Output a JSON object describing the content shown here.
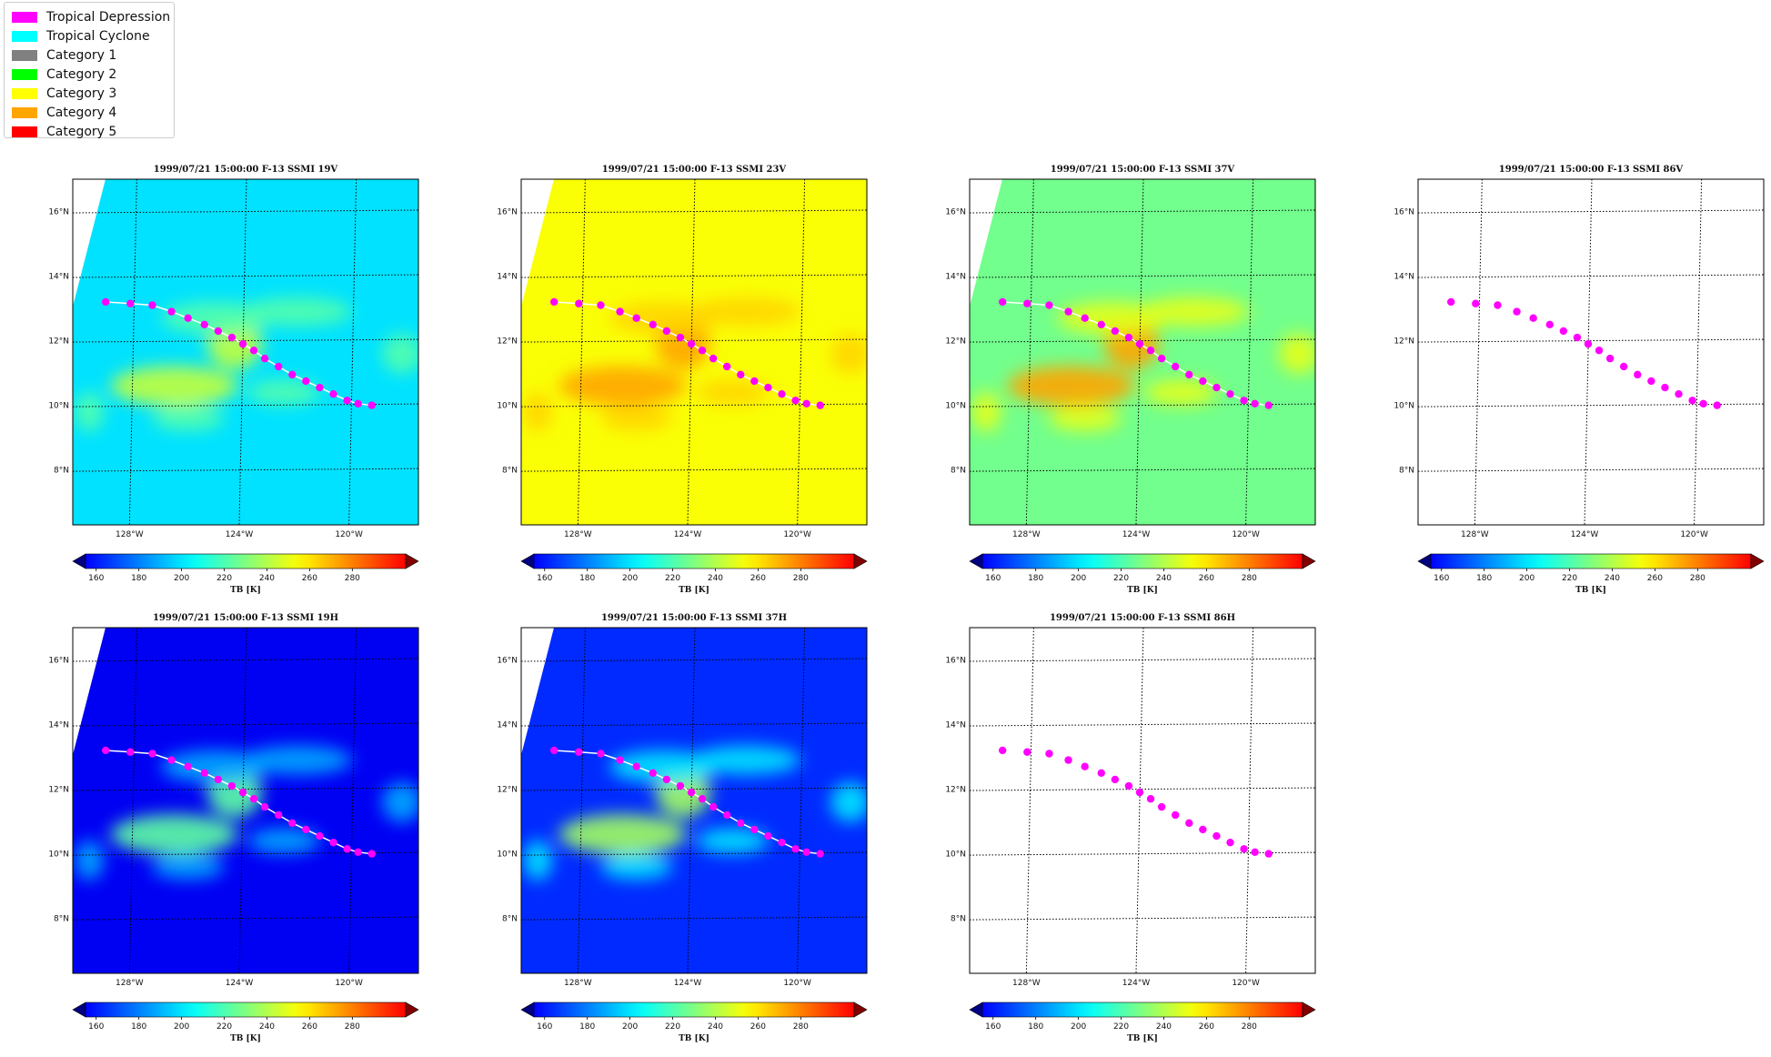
{
  "legend": {
    "items": [
      {
        "label": "Tropical Depression",
        "color": "#ff00ff"
      },
      {
        "label": "Tropical Cyclone",
        "color": "#00ffff"
      },
      {
        "label": "Category 1",
        "color": "#808080"
      },
      {
        "label": "Category 2",
        "color": "#00ff00"
      },
      {
        "label": "Category 3",
        "color": "#ffff00"
      },
      {
        "label": "Category 4",
        "color": "#ffa500"
      },
      {
        "label": "Category 5",
        "color": "#ff0000"
      }
    ]
  },
  "map": {
    "lon_labels": [
      "128°W",
      "124°W",
      "120°W"
    ],
    "lat_labels": [
      "16°N",
      "14°N",
      "12°N",
      "10°N",
      "8°N"
    ],
    "lon_values": [
      -128,
      -124,
      -120
    ],
    "lat_values": [
      16,
      14,
      12,
      10,
      8
    ],
    "track_color": "#ff00ff",
    "track": [
      [
        -129.0,
        13.2
      ],
      [
        -128.1,
        13.15
      ],
      [
        -127.3,
        13.1
      ],
      [
        -126.6,
        12.9
      ],
      [
        -126.0,
        12.7
      ],
      [
        -125.4,
        12.5
      ],
      [
        -124.9,
        12.3
      ],
      [
        -124.4,
        12.1
      ],
      [
        -124.0,
        11.9
      ],
      [
        -123.6,
        11.7
      ],
      [
        -123.2,
        11.45
      ],
      [
        -122.7,
        11.2
      ],
      [
        -122.2,
        10.95
      ],
      [
        -121.7,
        10.75
      ],
      [
        -121.2,
        10.55
      ],
      [
        -120.7,
        10.35
      ],
      [
        -120.2,
        10.15
      ],
      [
        -119.8,
        10.05
      ],
      [
        -119.3,
        10.0
      ]
    ]
  },
  "colorbar": {
    "ticks": [
      "160",
      "180",
      "200",
      "220",
      "240",
      "260",
      "280"
    ],
    "tick_values": [
      160,
      180,
      200,
      220,
      240,
      260,
      280
    ],
    "range": [
      155,
      305
    ],
    "label": "TB [K]"
  },
  "panels": [
    {
      "title": "1999/07/21 15:00:00  F-13 SSMI 19V",
      "base_tb": 207,
      "feature_tb": 240,
      "has_data": true,
      "show_line": true
    },
    {
      "title": "1999/07/21 15:00:00  F-13 SSMI 23V",
      "base_tb": 248,
      "feature_tb": 262,
      "has_data": true,
      "show_line": true
    },
    {
      "title": "1999/07/21 15:00:00  F-13 SSMI 37V",
      "base_tb": 228,
      "feature_tb": 262,
      "has_data": true,
      "show_line": true
    },
    {
      "title": "1999/07/21 15:00:00  F-13 SSMI 86V",
      "base_tb": null,
      "feature_tb": null,
      "has_data": false,
      "show_line": false
    },
    {
      "title": "1999/07/21 15:00:00  F-13 SSMI 19H",
      "base_tb": 172,
      "feature_tb": 225,
      "has_data": true,
      "show_line": true
    },
    {
      "title": "1999/07/21 15:00:00  F-13 SSMI 37H",
      "base_tb": 180,
      "feature_tb": 235,
      "has_data": true,
      "show_line": true
    },
    {
      "title": "1999/07/21 15:00:00  F-13 SSMI 86H",
      "base_tb": null,
      "feature_tb": null,
      "has_data": false,
      "show_line": false
    }
  ]
}
